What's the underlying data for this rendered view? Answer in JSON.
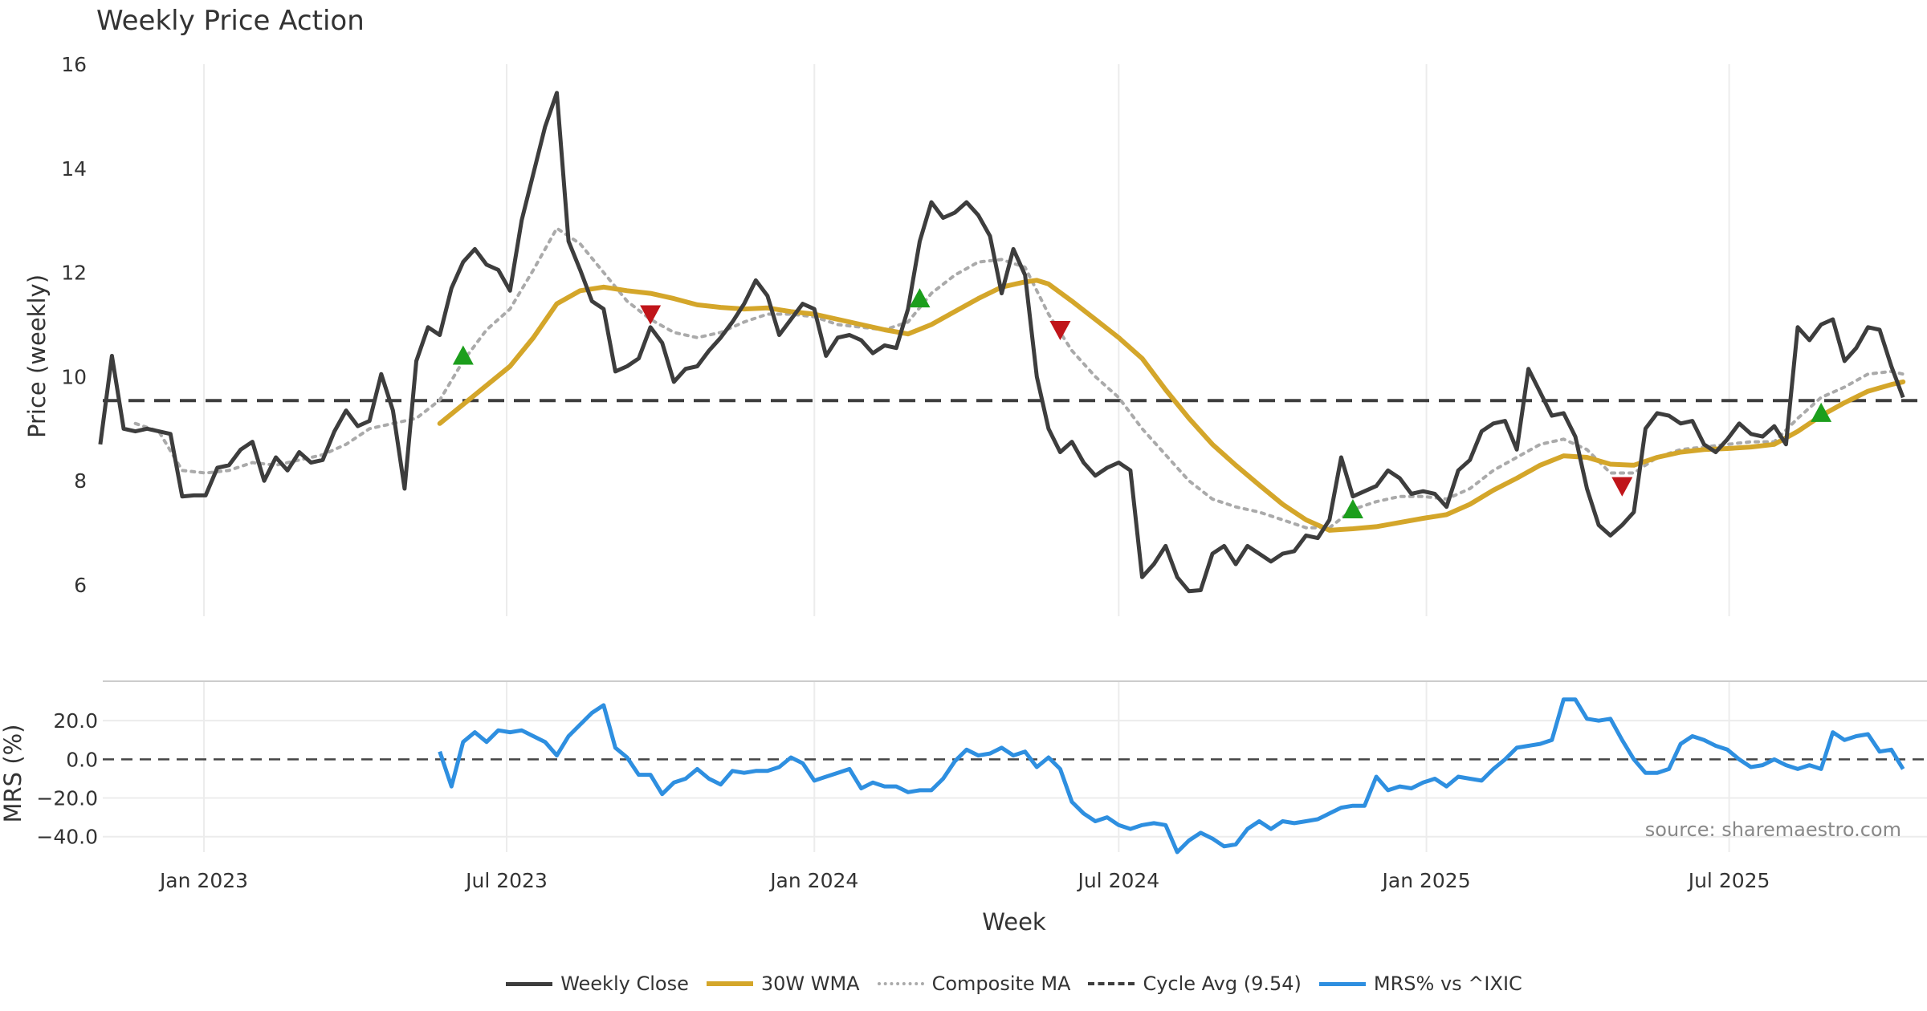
{
  "chart_title": "Weekly Price Action",
  "watermark": "source: sharemaestro.com",
  "legend": {
    "weekly_close": "Weekly Close",
    "wma": "30W WMA",
    "composite": "Composite MA",
    "cycle": "Cycle Avg (9.54)",
    "mrs": "MRS% vs ^IXIC"
  },
  "colors": {
    "weekly_close": "#3d3d3d",
    "wma": "#d4a62a",
    "composite": "#aaaaaa",
    "cycle": "#3d3d3d",
    "mrs": "#2e8fe0",
    "buy": "#1c9e1c",
    "sell": "#c0151a"
  },
  "chart_data": [
    {
      "type": "line",
      "ylabel": "Price (weekly)",
      "xlabel": "Week",
      "ylim": [
        5.4,
        16
      ],
      "yticks": [
        6,
        8,
        10,
        12,
        14,
        16
      ],
      "x_ticks": [
        "Jan 2023",
        "Jul 2023",
        "Jan 2024",
        "Jul 2024",
        "Jan 2025",
        "Jul 2025"
      ],
      "x_tick_dates": [
        "2023-01-01",
        "2023-07-01",
        "2024-01-01",
        "2024-07-01",
        "2025-01-01",
        "2025-07-01"
      ],
      "x_start": "2022-10-31",
      "x_end": "2025-10-13",
      "cycle_avg": 9.54,
      "series": [
        {
          "name": "Weekly Close",
          "values": [
            [
              {
                "2022-10-31": 8.7,
                "2022-11-07": 10.4,
                "2022-11-14": 9.0,
                "2022-11-21": 8.95,
                "2022-11-28": 9.0,
                "2022-12-05": 8.95,
                "2022-12-12": 8.9,
                "2022-12-19": 7.7,
                "2022-12-26": 7.72,
                "2023-01-02": 7.72,
                "2023-01-09": 8.25,
                "2023-01-16": 8.3,
                "2023-01-23": 8.6,
                "2023-01-30": 8.75,
                "2023-02-06": 8.0,
                "2023-02-13": 8.45,
                "2023-02-20": 8.2,
                "2023-02-27": 8.55,
                "2023-03-06": 8.35,
                "2023-03-13": 8.4,
                "2023-03-20": 8.95,
                "2023-03-27": 9.35,
                "2023-04-03": 9.05,
                "2023-04-10": 9.15,
                "2023-04-17": 10.05,
                "2023-04-24": 9.35,
                "2023-05-01": 7.85,
                "2023-05-08": 10.3,
                "2023-05-15": 10.95,
                "2023-05-22": 10.8,
                "2023-05-29": 11.7,
                "2023-06-05": 12.2,
                "2023-06-12": 12.45,
                "2023-06-19": 12.15,
                "2023-06-26": 12.05,
                "2023-07-03": 11.65,
                "2023-07-10": 13.0,
                "2023-07-17": 13.9,
                "2023-07-24": 14.8,
                "2023-07-31": 15.45,
                "2023-08-07": 12.6,
                "2023-08-14": 12.05,
                "2023-08-21": 11.45,
                "2023-08-28": 11.3,
                "2023-09-04": 10.1,
                "2023-09-11": 10.2,
                "2023-09-18": 10.35,
                "2023-09-25": 10.95,
                "2023-10-02": 10.65,
                "2023-10-09": 9.9,
                "2023-10-16": 10.15,
                "2023-10-23": 10.2,
                "2023-10-30": 10.5,
                "2023-11-06": 10.75,
                "2023-11-13": 11.05,
                "2023-11-20": 11.4,
                "2023-11-27": 11.85,
                "2023-12-04": 11.55,
                "2023-12-11": 10.8,
                "2023-12-18": 11.1,
                "2023-12-25": 11.4,
                "2024-01-01": 11.3,
                "2024-01-08": 10.4,
                "2024-01-15": 10.75,
                "2024-01-22": 10.8,
                "2024-01-29": 10.7,
                "2024-02-05": 10.45,
                "2024-02-12": 10.6,
                "2024-02-19": 10.55,
                "2024-02-26": 11.3,
                "2024-03-04": 12.6,
                "2024-03-11": 13.35,
                "2024-03-18": 13.05,
                "2024-03-25": 13.15,
                "2024-04-01": 13.35,
                "2024-04-08": 13.1,
                "2024-04-15": 12.7,
                "2024-04-22": 11.6,
                "2024-04-29": 12.45,
                "2024-05-06": 11.95,
                "2024-05-13": 10.0,
                "2024-05-20": 9.0,
                "2024-05-27": 8.55,
                "2024-06-03": 8.75,
                "2024-06-10": 8.35,
                "2024-06-17": 8.1,
                "2024-06-24": 8.25,
                "2024-07-01": 8.35,
                "2024-07-08": 8.2,
                "2024-07-15": 6.15,
                "2024-07-22": 6.4,
                "2024-07-29": 6.75,
                "2024-08-05": 6.15,
                "2024-08-12": 5.88,
                "2024-08-19": 5.9,
                "2024-08-26": 6.6,
                "2024-09-02": 6.75,
                "2024-09-09": 6.4,
                "2024-09-16": 6.75,
                "2024-09-23": 6.6,
                "2024-09-30": 6.45,
                "2024-10-07": 6.6,
                "2024-10-14": 6.65,
                "2024-10-21": 6.95,
                "2024-10-28": 6.9,
                "2024-11-04": 7.25,
                "2024-11-11": 8.45,
                "2024-11-18": 7.7,
                "2024-11-25": 7.8,
                "2024-12-02": 7.9,
                "2024-12-09": 8.2,
                "2024-12-16": 8.05,
                "2024-12-23": 7.75,
                "2024-12-30": 7.8,
                "2025-01-06": 7.75,
                "2025-01-13": 7.5,
                "2025-01-20": 8.2,
                "2025-01-27": 8.4,
                "2025-02-03": 8.95,
                "2025-02-10": 9.1,
                "2025-02-17": 9.15,
                "2025-02-24": 8.6,
                "2025-03-03": 10.15,
                "2025-03-10": 9.7,
                "2025-03-17": 9.25,
                "2025-03-24": 9.3,
                "2025-03-31": 8.85,
                "2025-04-07": 7.85,
                "2025-04-14": 7.15,
                "2025-04-21": 6.95,
                "2025-04-28": 7.15,
                "2025-05-05": 7.4,
                "2025-05-12": 9.0,
                "2025-05-19": 9.3,
                "2025-05-26": 9.25,
                "2025-06-02": 9.1,
                "2025-06-09": 9.15,
                "2025-06-16": 8.7,
                "2025-06-23": 8.55,
                "2025-06-30": 8.8,
                "2025-07-07": 9.1,
                "2025-07-14": 8.9,
                "2025-07-21": 8.85,
                "2025-07-28": 9.05,
                "2025-08-04": 8.7,
                "2025-08-11": 10.95,
                "2025-08-18": 10.7,
                "2025-08-25": 11.0,
                "2025-09-01": 11.1,
                "2025-09-08": 10.3,
                "2025-09-15": 10.55,
                "2025-09-22": 10.95,
                "2025-09-29": 10.9,
                "2025-10-06": 10.2,
                "2025-10-13": 9.6
              }
            ]
          ]
        },
        {
          "name": "30W WMA",
          "values": [
            [
              {
                "2023-05-22": 9.1,
                "2023-06-12": 9.65,
                "2023-07-03": 10.2,
                "2023-07-17": 10.75,
                "2023-07-31": 11.4,
                "2023-08-14": 11.65,
                "2023-08-28": 11.72,
                "2023-09-11": 11.65,
                "2023-09-25": 11.6,
                "2023-10-09": 11.5,
                "2023-10-23": 11.38,
                "2023-11-06": 11.33,
                "2023-11-20": 11.3,
                "2023-12-04": 11.32,
                "2023-12-18": 11.25,
                "2024-01-01": 11.2,
                "2024-01-15": 11.1,
                "2024-01-29": 11.0,
                "2024-02-12": 10.9,
                "2024-02-26": 10.82,
                "2024-03-11": 11.0,
                "2024-03-25": 11.25,
                "2024-04-08": 11.5,
                "2024-04-22": 11.72,
                "2024-05-06": 11.82,
                "2024-05-13": 11.85,
                "2024-05-20": 11.78,
                "2024-06-03": 11.45,
                "2024-06-17": 11.1,
                "2024-07-01": 10.75,
                "2024-07-15": 10.35,
                "2024-07-29": 9.75,
                "2024-08-12": 9.2,
                "2024-08-26": 8.7,
                "2024-09-09": 8.3,
                "2024-09-23": 7.92,
                "2024-10-07": 7.55,
                "2024-10-21": 7.25,
                "2024-11-04": 7.05,
                "2024-11-18": 7.08,
                "2024-12-02": 7.12,
                "2024-12-16": 7.2,
                "2024-12-30": 7.28,
                "2025-01-13": 7.35,
                "2025-01-27": 7.55,
                "2025-02-10": 7.82,
                "2025-02-24": 8.05,
                "2025-03-10": 8.3,
                "2025-03-24": 8.48,
                "2025-04-07": 8.45,
                "2025-04-21": 8.32,
                "2025-05-05": 8.3,
                "2025-05-19": 8.45,
                "2025-06-02": 8.55,
                "2025-06-16": 8.6,
                "2025-06-30": 8.62,
                "2025-07-14": 8.65,
                "2025-07-28": 8.7,
                "2025-08-11": 8.95,
                "2025-08-25": 9.25,
                "2025-09-08": 9.5,
                "2025-09-22": 9.72,
                "2025-10-06": 9.85,
                "2025-10-13": 9.9
              }
            ]
          ]
        },
        {
          "name": "Composite MA",
          "values": [
            [
              {
                "2022-11-21": 9.1,
                "2022-12-05": 8.95,
                "2022-12-19": 8.2,
                "2023-01-02": 8.15,
                "2023-01-16": 8.2,
                "2023-01-30": 8.35,
                "2023-02-13": 8.3,
                "2023-02-27": 8.4,
                "2023-03-13": 8.5,
                "2023-03-27": 8.7,
                "2023-04-10": 9.0,
                "2023-04-24": 9.1,
                "2023-05-08": 9.2,
                "2023-05-22": 9.55,
                "2023-06-05": 10.3,
                "2023-06-19": 10.9,
                "2023-07-03": 11.3,
                "2023-07-17": 12.05,
                "2023-07-31": 12.85,
                "2023-08-14": 12.55,
                "2023-08-28": 12.0,
                "2023-09-11": 11.45,
                "2023-09-25": 11.1,
                "2023-10-09": 10.85,
                "2023-10-23": 10.75,
                "2023-11-06": 10.85,
                "2023-11-20": 11.05,
                "2023-12-04": 11.2,
                "2023-12-18": 11.2,
                "2024-01-01": 11.15,
                "2024-01-15": 11.0,
                "2024-01-29": 10.95,
                "2024-02-12": 10.9,
                "2024-02-26": 11.05,
                "2024-03-11": 11.6,
                "2024-03-25": 11.95,
                "2024-04-08": 12.2,
                "2024-04-22": 12.25,
                "2024-05-06": 12.1,
                "2024-05-20": 11.2,
                "2024-06-03": 10.5,
                "2024-06-17": 10.0,
                "2024-07-01": 9.6,
                "2024-07-15": 9.0,
                "2024-07-29": 8.5,
                "2024-08-12": 8.0,
                "2024-08-26": 7.65,
                "2024-09-09": 7.5,
                "2024-09-23": 7.4,
                "2024-10-07": 7.25,
                "2024-10-21": 7.1,
                "2024-11-04": 7.1,
                "2024-11-18": 7.45,
                "2024-12-02": 7.6,
                "2024-12-16": 7.7,
                "2024-12-30": 7.7,
                "2025-01-13": 7.65,
                "2025-01-27": 7.85,
                "2025-02-10": 8.2,
                "2025-02-24": 8.45,
                "2025-03-10": 8.7,
                "2025-03-24": 8.8,
                "2025-04-07": 8.6,
                "2025-04-21": 8.15,
                "2025-05-05": 8.15,
                "2025-05-19": 8.45,
                "2025-06-02": 8.6,
                "2025-06-16": 8.65,
                "2025-06-30": 8.7,
                "2025-07-14": 8.75,
                "2025-07-28": 8.75,
                "2025-08-11": 9.2,
                "2025-08-25": 9.6,
                "2025-09-08": 9.8,
                "2025-09-22": 10.05,
                "2025-10-06": 10.1,
                "2025-10-13": 10.05
              }
            ]
          ]
        },
        {
          "name": "Cycle Avg (9.54)",
          "values": [
            [
              {
                "2022-10-31": 9.54,
                "2025-10-13": 9.54
              }
            ]
          ]
        }
      ],
      "markers": [
        {
          "type": "buy",
          "date": "2023-06-05",
          "y": 10.4
        },
        {
          "type": "sell",
          "date": "2023-09-25",
          "y": 11.2
        },
        {
          "type": "buy",
          "date": "2024-03-04",
          "y": 11.5
        },
        {
          "type": "sell",
          "date": "2024-05-27",
          "y": 10.9
        },
        {
          "type": "buy",
          "date": "2024-11-18",
          "y": 7.45
        },
        {
          "type": "sell",
          "date": "2025-04-28",
          "y": 7.9
        },
        {
          "type": "buy",
          "date": "2025-08-25",
          "y": 9.3
        }
      ]
    },
    {
      "type": "line",
      "ylabel": "MRS (%)",
      "ylim": [
        -48,
        40
      ],
      "yticks": [
        20.0,
        0.0,
        -20.0,
        -40.0
      ],
      "ytick_labels": [
        "20.0",
        "0.0",
        "−20.0",
        "−40.0"
      ],
      "zero_line": 0.0,
      "series": [
        {
          "name": "MRS% vs ^IXIC",
          "values": [
            [
              {
                "2023-05-22": 4,
                "2023-05-29": -14,
                "2023-06-05": 9,
                "2023-06-12": 14,
                "2023-06-19": 9,
                "2023-06-26": 15,
                "2023-07-03": 14,
                "2023-07-10": 15,
                "2023-07-17": 12,
                "2023-07-24": 9,
                "2023-07-31": 2,
                "2023-08-07": 12,
                "2023-08-14": 18,
                "2023-08-21": 24,
                "2023-08-28": 28,
                "2023-09-04": 6,
                "2023-09-11": 1,
                "2023-09-18": -8,
                "2023-09-25": -8,
                "2023-10-02": -18,
                "2023-10-09": -12,
                "2023-10-16": -10,
                "2023-10-23": -5,
                "2023-10-30": -10,
                "2023-11-06": -13,
                "2023-11-13": -6,
                "2023-11-20": -7,
                "2023-11-27": -6,
                "2023-12-04": -6,
                "2023-12-11": -4,
                "2023-12-18": 1,
                "2023-12-25": -2,
                "2024-01-01": -11,
                "2024-01-08": -9,
                "2024-01-15": -7,
                "2024-01-22": -5,
                "2024-01-29": -15,
                "2024-02-05": -12,
                "2024-02-12": -14,
                "2024-02-19": -14,
                "2024-02-26": -17,
                "2024-03-04": -16,
                "2024-03-11": -16,
                "2024-03-18": -10,
                "2024-03-25": -1,
                "2024-04-01": 5,
                "2024-04-08": 2,
                "2024-04-15": 3,
                "2024-04-22": 6,
                "2024-04-29": 2,
                "2024-05-06": 4,
                "2024-05-13": -4,
                "2024-05-20": 1,
                "2024-05-27": -5,
                "2024-06-03": -22,
                "2024-06-10": -28,
                "2024-06-17": -32,
                "2024-06-24": -30,
                "2024-07-01": -34,
                "2024-07-08": -36,
                "2024-07-15": -34,
                "2024-07-22": -33,
                "2024-07-29": -34,
                "2024-08-05": -48,
                "2024-08-12": -42,
                "2024-08-19": -38,
                "2024-08-26": -41,
                "2024-09-02": -45,
                "2024-09-09": -44,
                "2024-09-16": -36,
                "2024-09-23": -32,
                "2024-09-30": -36,
                "2024-10-07": -32,
                "2024-10-14": -33,
                "2024-10-21": -32,
                "2024-10-28": -31,
                "2024-11-04": -28,
                "2024-11-11": -25,
                "2024-11-18": -24,
                "2024-11-25": -24,
                "2024-12-02": -9,
                "2024-12-09": -16,
                "2024-12-16": -14,
                "2024-12-23": -15,
                "2024-12-30": -12,
                "2025-01-06": -10,
                "2025-01-13": -14,
                "2025-01-20": -9,
                "2025-01-27": -10,
                "2025-02-03": -11,
                "2025-02-10": -5,
                "2025-02-17": 0,
                "2025-02-24": 6,
                "2025-03-03": 7,
                "2025-03-10": 8,
                "2025-03-17": 10,
                "2025-03-24": 31,
                "2025-03-31": 31,
                "2025-04-07": 21,
                "2025-04-14": 20,
                "2025-04-21": 21,
                "2025-04-28": 10,
                "2025-05-05": 0,
                "2025-05-12": -7,
                "2025-05-19": -7,
                "2025-05-26": -5,
                "2025-06-02": 8,
                "2025-06-09": 12,
                "2025-06-16": 10,
                "2025-06-23": 7,
                "2025-06-30": 5,
                "2025-07-07": 0,
                "2025-07-14": -4,
                "2025-07-21": -3,
                "2025-07-28": 0,
                "2025-08-04": -3,
                "2025-08-11": -5,
                "2025-08-18": -3,
                "2025-08-25": -5,
                "2025-09-01": 14,
                "2025-09-08": 10,
                "2025-09-15": 12,
                "2025-09-22": 13,
                "2025-09-29": 4,
                "2025-10-06": 5,
                "2025-10-13": -5
              }
            ]
          ]
        }
      ]
    }
  ]
}
